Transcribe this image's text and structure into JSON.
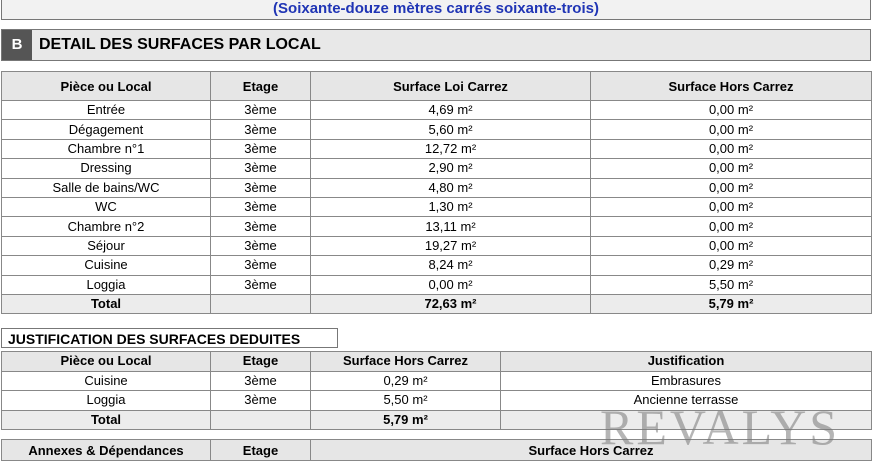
{
  "summary_words": "(Soixante-douze mètres carrés soixante-trois)",
  "section_b": {
    "letter": "B",
    "title": "DETAIL DES SURFACES PAR LOCAL"
  },
  "table1": {
    "headers": [
      "Pièce ou Local",
      "Etage",
      "Surface Loi Carrez",
      "Surface Hors Carrez"
    ],
    "rows": [
      [
        "Entrée",
        "3ème",
        "4,69 m²",
        "0,00 m²"
      ],
      [
        "Dégagement",
        "3ème",
        "5,60 m²",
        "0,00 m²"
      ],
      [
        "Chambre n°1",
        "3ème",
        "12,72 m²",
        "0,00 m²"
      ],
      [
        "Dressing",
        "3ème",
        "2,90 m²",
        "0,00 m²"
      ],
      [
        "Salle de bains/WC",
        "3ème",
        "4,80 m²",
        "0,00 m²"
      ],
      [
        "WC",
        "3ème",
        "1,30 m²",
        "0,00 m²"
      ],
      [
        "Chambre n°2",
        "3ème",
        "13,11 m²",
        "0,00 m²"
      ],
      [
        "Séjour",
        "3ème",
        "19,27 m²",
        "0,00 m²"
      ],
      [
        "Cuisine",
        "3ème",
        "8,24 m²",
        "0,29 m²"
      ],
      [
        "Loggia",
        "3ème",
        "0,00 m²",
        "5,50 m²"
      ]
    ],
    "total": [
      "Total",
      "",
      "72,63 m²",
      "5,79 m²"
    ]
  },
  "justification": {
    "title": "JUSTIFICATION DES SURFACES DEDUITES",
    "headers": [
      "Pièce ou Local",
      "Etage",
      "Surface Hors Carrez",
      "Justification"
    ],
    "rows": [
      [
        "Cuisine",
        "3ème",
        "0,29 m²",
        "Embrasures"
      ],
      [
        "Loggia",
        "3ème",
        "5,50 m²",
        "Ancienne terrasse"
      ]
    ],
    "total": [
      "Total",
      "",
      "5,79 m²",
      ""
    ]
  },
  "annexes": {
    "headers": [
      "Annexes & Dépendances",
      "Etage",
      "Surface Hors Carrez"
    ]
  },
  "watermark": "REVALYS"
}
